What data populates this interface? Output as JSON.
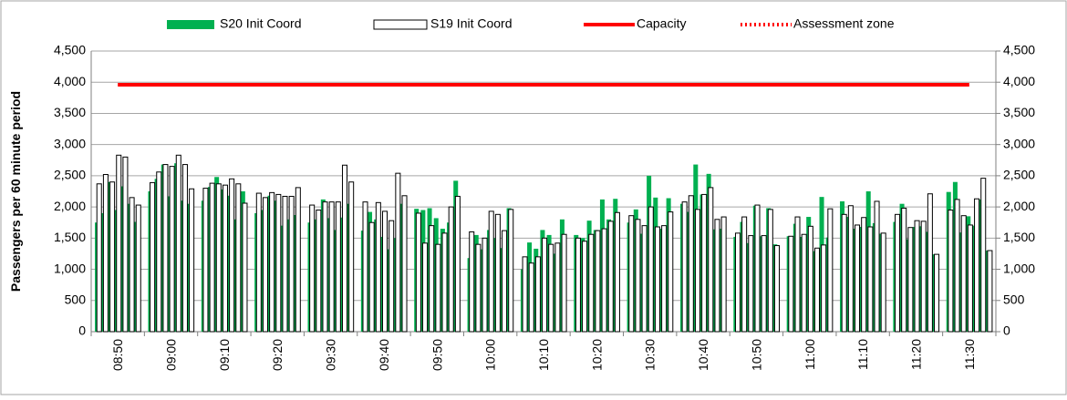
{
  "chart_data": {
    "type": "bar",
    "y_label": "Passengers per 60 minute period",
    "categories": [
      null,
      null,
      null,
      "08:50",
      null,
      null,
      null,
      null,
      null,
      null,
      "09:00",
      null,
      null,
      null,
      null,
      null,
      null,
      "09:10",
      null,
      null,
      null,
      null,
      null,
      null,
      "09:20",
      null,
      null,
      null,
      null,
      null,
      null,
      "09:30",
      null,
      null,
      null,
      null,
      null,
      null,
      "09:40",
      null,
      null,
      null,
      null,
      null,
      null,
      "09:50",
      null,
      null,
      null,
      null,
      null,
      null,
      "10:00",
      null,
      null,
      null,
      null,
      null,
      null,
      "10:10",
      null,
      null,
      null,
      null,
      null,
      null,
      "10:20",
      null,
      null,
      null,
      null,
      null,
      null,
      "10:30",
      null,
      null,
      null,
      null,
      null,
      null,
      "10:40",
      null,
      null,
      null,
      null,
      null,
      null,
      "10:50",
      null,
      null,
      null,
      null,
      null,
      null,
      "11:00",
      null,
      null,
      null,
      null,
      null,
      null,
      "11:10",
      null,
      null,
      null,
      null,
      null,
      null,
      "11:20",
      null,
      null,
      null,
      null,
      null,
      null,
      "11:30",
      null,
      null,
      null
    ],
    "series": [
      {
        "name": "S20 Init Coord",
        "color": "#00b050",
        "style": "bar",
        "values": [
          1750,
          1900,
          2400,
          1950,
          2330,
          2050,
          1760,
          2250,
          2450,
          2680,
          2170,
          2700,
          2100,
          2050,
          2100,
          2320,
          2480,
          2280,
          2180,
          1800,
          2250,
          1900,
          1950,
          2180,
          2100,
          1700,
          1800,
          1870,
          1750,
          1800,
          2120,
          1820,
          1630,
          1830,
          2050,
          1620,
          1920,
          1800,
          1520,
          1320,
          1500,
          2050,
          1970,
          1950,
          1980,
          1820,
          1650,
          1750,
          2420,
          1180,
          1550,
          1320,
          1630,
          1500,
          1340,
          1980,
          1000,
          1430,
          1330,
          1630,
          1550,
          1250,
          1800,
          1550,
          1500,
          1780,
          1630,
          2120,
          1800,
          2130,
          1750,
          1960,
          1570,
          2500,
          2150,
          1650,
          2140,
          2050,
          1920,
          2680,
          2200,
          2530,
          1640,
          1650,
          1520,
          1760,
          1420,
          2020,
          1530,
          1980,
          1400,
          1530,
          1730,
          1520,
          1840,
          1290,
          2160,
          1510,
          2090,
          1840,
          1650,
          1680,
          2250,
          1740,
          1570,
          1760,
          2050,
          1480,
          1680,
          1690,
          1600,
          1240,
          2240,
          2400,
          1590,
          1850,
          1700,
          2120,
          1300
        ]
      },
      {
        "name": "S19 Init Coord",
        "color": "#ffffff",
        "style": "outline-bar",
        "values": [
          2370,
          2520,
          2400,
          2830,
          2800,
          2150,
          2030,
          2390,
          2560,
          2680,
          2650,
          2830,
          2680,
          2290,
          2300,
          2380,
          2370,
          2350,
          2450,
          2370,
          2060,
          2220,
          2150,
          2230,
          2200,
          2170,
          2170,
          2310,
          2030,
          1950,
          2080,
          2080,
          2080,
          2670,
          2400,
          2080,
          1750,
          2070,
          1930,
          1780,
          2540,
          2180,
          1900,
          1420,
          1700,
          1400,
          1580,
          2000,
          2170,
          1600,
          1400,
          1500,
          1930,
          1880,
          1620,
          1960,
          1200,
          1100,
          1200,
          1500,
          1400,
          1420,
          1560,
          1500,
          1450,
          1560,
          1620,
          1650,
          1770,
          1910,
          1860,
          1800,
          1700,
          2000,
          1680,
          1700,
          1920,
          2080,
          2180,
          1960,
          2200,
          2310,
          1800,
          1840,
          1580,
          1840,
          1540,
          2030,
          1540,
          1960,
          1380,
          1530,
          1840,
          1560,
          1690,
          1340,
          1390,
          1970,
          1880,
          2020,
          1710,
          1830,
          1680,
          2090,
          1580,
          1880,
          1980,
          1670,
          1780,
          1770,
          2210,
          1240,
          1950,
          2120,
          1860,
          1710,
          2130,
          2460,
          1300
        ]
      },
      {
        "name": "Capacity",
        "color": "#ff0000",
        "style": "line",
        "values": [
          null,
          null,
          null,
          3960,
          3960,
          3960,
          3960,
          3960,
          3960,
          3960,
          3960,
          3960,
          3960,
          3960,
          3960,
          3960,
          3960,
          3960,
          3960,
          3960,
          3960,
          3960,
          3960,
          3960,
          3960,
          3960,
          3960,
          3960,
          3960,
          3960,
          3960,
          3960,
          3960,
          3960,
          3960,
          3960,
          3960,
          3960,
          3960,
          3960,
          3960,
          3960,
          3960,
          3960,
          3960,
          3960,
          3960,
          3960,
          3960,
          3960,
          3960,
          3960,
          3960,
          3960,
          3960,
          3960,
          3960,
          3960,
          3960,
          3960,
          3960,
          3960,
          3960,
          3960,
          3960,
          3960,
          3960,
          3960,
          3960,
          3960,
          3960,
          3960,
          3960,
          3960,
          3960,
          3960,
          3960,
          3960,
          3960,
          3960,
          3960,
          3960,
          3960,
          3960,
          3960,
          3960,
          3960,
          3960,
          3960,
          3960,
          3960,
          3960,
          3960,
          3960,
          3960,
          3960,
          3960,
          3960,
          3960,
          3960,
          3960,
          3960,
          3960,
          3960,
          3960,
          3960,
          3960,
          3960,
          3960,
          3960,
          3960,
          3960,
          3960,
          3960,
          3960,
          3960,
          null,
          null,
          null
        ]
      },
      {
        "name": "Assessment zone",
        "color": "#ff0000",
        "style": "dotted-line",
        "values": [
          null,
          null,
          null,
          null,
          null,
          null,
          null,
          null,
          null,
          null,
          null,
          null,
          null,
          null,
          null,
          null,
          null,
          null,
          null,
          null,
          null,
          null,
          null,
          null,
          null,
          null,
          null,
          null,
          null,
          null,
          null,
          null,
          null,
          null,
          null,
          null,
          null,
          null,
          null,
          null,
          null,
          null,
          null,
          null,
          null,
          null,
          null,
          null,
          null,
          null,
          null,
          null,
          null,
          null,
          null,
          null,
          null,
          null,
          null,
          null,
          null,
          null,
          null,
          null,
          null,
          null,
          null,
          null,
          null,
          null,
          null,
          null,
          null,
          null,
          null,
          null,
          null,
          null,
          null,
          null,
          null,
          null,
          null,
          null,
          null,
          null,
          null,
          null,
          null,
          null,
          null,
          null,
          null,
          null,
          null,
          null,
          null,
          null,
          null,
          null,
          null,
          null,
          null,
          null,
          null,
          null,
          null,
          null,
          null,
          null,
          null,
          null,
          null,
          null,
          null,
          null,
          null,
          null,
          null
        ]
      }
    ],
    "ylim": [
      0,
      4500
    ],
    "yticks": [
      0,
      500,
      {
        "value": 1000,
        "label": "1,000"
      },
      {
        "value": 1500,
        "label": "1,500"
      },
      {
        "value": 2000,
        "label": "2,000"
      },
      {
        "value": 2500,
        "label": "2,500"
      },
      {
        "value": 3000,
        "label": "3,000"
      },
      {
        "value": 3500,
        "label": "3,500"
      },
      {
        "value": 4000,
        "label": "4,000"
      },
      {
        "value": 4500,
        "label": "4,500"
      }
    ],
    "y2lim": [
      0,
      4500
    ],
    "y2ticks": [
      0,
      500,
      {
        "value": 1000,
        "label": "1,000"
      },
      {
        "value": 1500,
        "label": "1,500"
      },
      {
        "value": 2000,
        "label": "2,000"
      },
      {
        "value": 2500,
        "label": "2,500"
      },
      {
        "value": 3000,
        "label": "3,000"
      },
      {
        "value": 3500,
        "label": "3,500"
      },
      {
        "value": 4000,
        "label": "4,000"
      },
      {
        "value": 4500,
        "label": "4,500"
      }
    ],
    "grid": true
  }
}
